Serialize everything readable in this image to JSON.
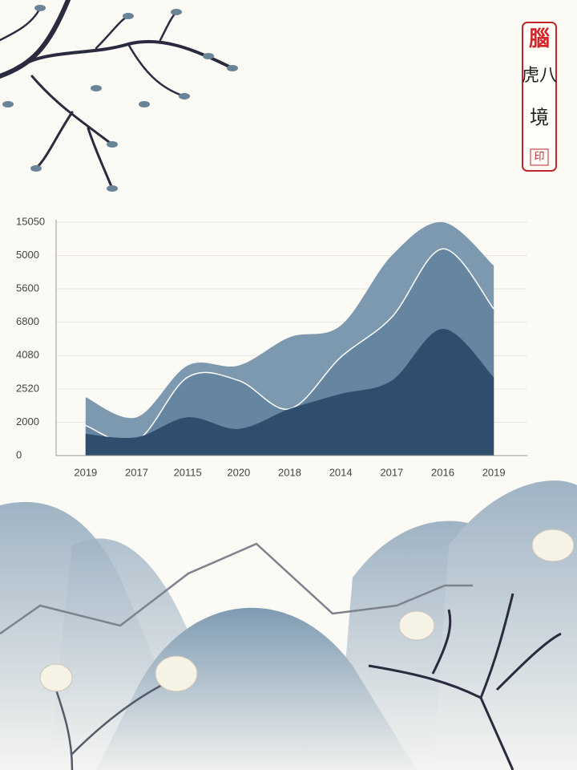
{
  "chart_data": {
    "type": "area",
    "categories": [
      "2019",
      "2017",
      "20115",
      "2020",
      "2018",
      "2014",
      "2017",
      "2016",
      "2019"
    ],
    "ylevels": [
      "0",
      "2000",
      "2520",
      "4080",
      "6800",
      "5600",
      "5000",
      "15050"
    ],
    "ylim": [
      0,
      7
    ],
    "grid": true,
    "series": [
      {
        "color": "#7d99b0",
        "values": [
          1.75,
          1.15,
          2.7,
          2.7,
          3.55,
          3.9,
          6.0,
          7.0,
          5.7
        ]
      },
      {
        "color": "#6685a0",
        "outline": "#ffffff",
        "values": [
          0.9,
          0.45,
          2.35,
          2.25,
          1.4,
          2.95,
          4.15,
          6.2,
          4.4
        ]
      },
      {
        "color": "#2f4d6c",
        "values": [
          0.65,
          0.55,
          1.15,
          0.8,
          1.4,
          1.85,
          2.25,
          3.8,
          2.35
        ]
      }
    ]
  },
  "seal": {
    "top": "腦",
    "lines": [
      "虎八",
      "境"
    ],
    "stamp": "印"
  }
}
